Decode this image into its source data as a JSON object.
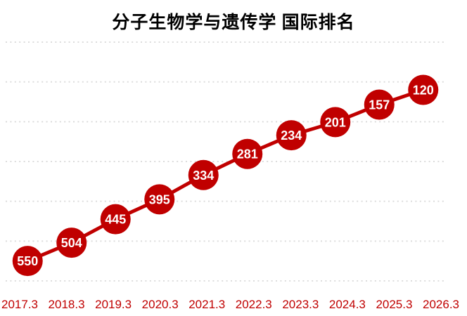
{
  "chart_data": {
    "type": "line",
    "title": "分子生物学与遗传学 国际排名",
    "categories": [
      "2017.3",
      "2018.3",
      "2019.3",
      "2020.3",
      "2021.3",
      "2022.3",
      "2023.3",
      "2024.3",
      "2025.3",
      "2026.3"
    ],
    "values": [
      550,
      504,
      445,
      395,
      334,
      281,
      234,
      201,
      157,
      120
    ],
    "xlabel": "",
    "ylabel": "",
    "ylim": [
      0,
      600
    ],
    "y_axis_inverted": true,
    "gridline_step": 100,
    "grid": "dotted-horizontal",
    "legend_position": "none",
    "data_labels": true,
    "marker": "circle"
  },
  "colors": {
    "series": "#C00000",
    "point_fill": "#C00000",
    "point_label_text": "#FFFFFF",
    "axis_label": "#C00000",
    "gridline": "#DCDCDC",
    "title": "#000000",
    "background": "#FFFFFF"
  }
}
